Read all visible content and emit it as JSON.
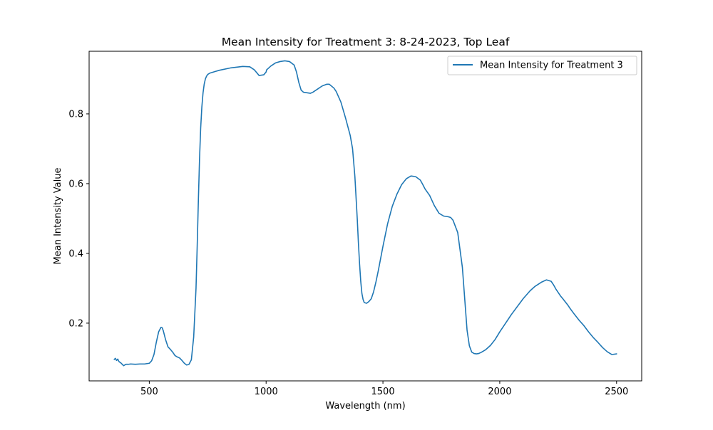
{
  "chart_data": {
    "type": "line",
    "title": "Mean Intensity for Treatment 3: 8-24-2023, Top Leaf",
    "xlabel": "Wavelength (nm)",
    "ylabel": "Mean Intensity Value",
    "xlim": [
      242.5,
      2607.5
    ],
    "ylim": [
      0.0345,
      0.9795
    ],
    "xticks": [
      500,
      1000,
      1500,
      2000,
      2500
    ],
    "xtick_labels": [
      "500",
      "1000",
      "1500",
      "2000",
      "2500"
    ],
    "yticks": [
      0.2,
      0.4,
      0.6,
      0.8
    ],
    "ytick_labels": [
      "0.2",
      "0.4",
      "0.6",
      "0.8"
    ],
    "grid": false,
    "legend_position": "top-right",
    "colors": {
      "series": "#1f77b4",
      "axes": "#000000",
      "background": "#ffffff"
    },
    "series": [
      {
        "name": "Mean Intensity for Treatment 3",
        "x": [
          350,
          355,
          360,
          365,
          370,
          380,
          390,
          400,
          410,
          420,
          440,
          460,
          480,
          500,
          510,
          520,
          530,
          540,
          550,
          555,
          560,
          570,
          580,
          590,
          600,
          610,
          620,
          630,
          640,
          650,
          660,
          670,
          680,
          690,
          700,
          705,
          710,
          715,
          720,
          725,
          730,
          735,
          740,
          745,
          750,
          760,
          770,
          780,
          800,
          850,
          900,
          930,
          950,
          970,
          990,
          1000,
          1002,
          1020,
          1040,
          1060,
          1080,
          1100,
          1120,
          1130,
          1140,
          1150,
          1160,
          1170,
          1190,
          1200,
          1220,
          1240,
          1260,
          1270,
          1290,
          1300,
          1320,
          1340,
          1360,
          1370,
          1380,
          1390,
          1395,
          1400,
          1405,
          1410,
          1415,
          1420,
          1430,
          1440,
          1450,
          1460,
          1470,
          1480,
          1500,
          1520,
          1540,
          1560,
          1580,
          1600,
          1620,
          1640,
          1660,
          1670,
          1680,
          1700,
          1720,
          1740,
          1760,
          1780,
          1790,
          1800,
          1820,
          1840,
          1850,
          1860,
          1870,
          1880,
          1890,
          1900,
          1910,
          1920,
          1940,
          1960,
          1980,
          2000,
          2050,
          2100,
          2130,
          2150,
          2180,
          2200,
          2220,
          2230,
          2240,
          2260,
          2270,
          2290,
          2300,
          2320,
          2340,
          2360,
          2380,
          2400,
          2420,
          2440,
          2460,
          2480,
          2500
        ],
        "values": [
          0.096,
          0.099,
          0.093,
          0.097,
          0.09,
          0.085,
          0.078,
          0.082,
          0.082,
          0.083,
          0.082,
          0.083,
          0.083,
          0.085,
          0.092,
          0.11,
          0.145,
          0.175,
          0.188,
          0.187,
          0.178,
          0.152,
          0.132,
          0.125,
          0.117,
          0.107,
          0.103,
          0.1,
          0.093,
          0.085,
          0.08,
          0.082,
          0.095,
          0.16,
          0.3,
          0.42,
          0.55,
          0.67,
          0.76,
          0.82,
          0.86,
          0.885,
          0.9,
          0.908,
          0.913,
          0.917,
          0.919,
          0.921,
          0.925,
          0.932,
          0.936,
          0.935,
          0.926,
          0.91,
          0.912,
          0.92,
          0.926,
          0.937,
          0.946,
          0.95,
          0.952,
          0.95,
          0.94,
          0.92,
          0.89,
          0.868,
          0.862,
          0.861,
          0.859,
          0.862,
          0.871,
          0.88,
          0.885,
          0.885,
          0.874,
          0.864,
          0.834,
          0.788,
          0.738,
          0.7,
          0.62,
          0.5,
          0.43,
          0.37,
          0.32,
          0.285,
          0.268,
          0.259,
          0.257,
          0.262,
          0.27,
          0.29,
          0.318,
          0.35,
          0.42,
          0.485,
          0.535,
          0.57,
          0.597,
          0.614,
          0.622,
          0.62,
          0.61,
          0.598,
          0.585,
          0.566,
          0.537,
          0.515,
          0.507,
          0.505,
          0.503,
          0.495,
          0.46,
          0.36,
          0.27,
          0.18,
          0.135,
          0.117,
          0.113,
          0.112,
          0.113,
          0.116,
          0.124,
          0.136,
          0.153,
          0.175,
          0.225,
          0.27,
          0.293,
          0.305,
          0.318,
          0.324,
          0.32,
          0.31,
          0.298,
          0.278,
          0.27,
          0.253,
          0.243,
          0.225,
          0.208,
          0.193,
          0.175,
          0.159,
          0.145,
          0.13,
          0.118,
          0.11,
          0.112
        ]
      }
    ]
  }
}
